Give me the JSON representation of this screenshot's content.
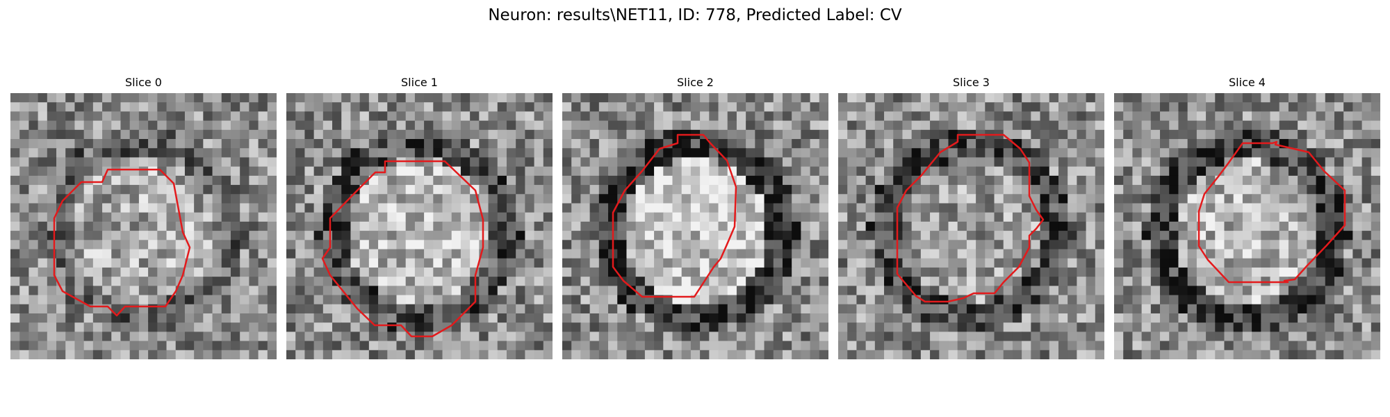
{
  "figure": {
    "title": "Neuron: results\\NET11, ID: 778, Predicted Label: CV"
  },
  "contour_color": "#e31a1c",
  "slices": [
    {
      "title": "Slice 0",
      "seed": 11,
      "ring_strength": 0.35,
      "center_bright": 0.18
    },
    {
      "title": "Slice 1",
      "seed": 23,
      "ring_strength": 0.55,
      "center_bright": 0.3
    },
    {
      "title": "Slice 2",
      "seed": 37,
      "ring_strength": 0.75,
      "center_bright": 0.38
    },
    {
      "title": "Slice 3",
      "seed": 41,
      "ring_strength": 0.6,
      "center_bright": 0.1
    },
    {
      "title": "Slice 4",
      "seed": 53,
      "ring_strength": 0.7,
      "center_bright": 0.25
    }
  ]
}
